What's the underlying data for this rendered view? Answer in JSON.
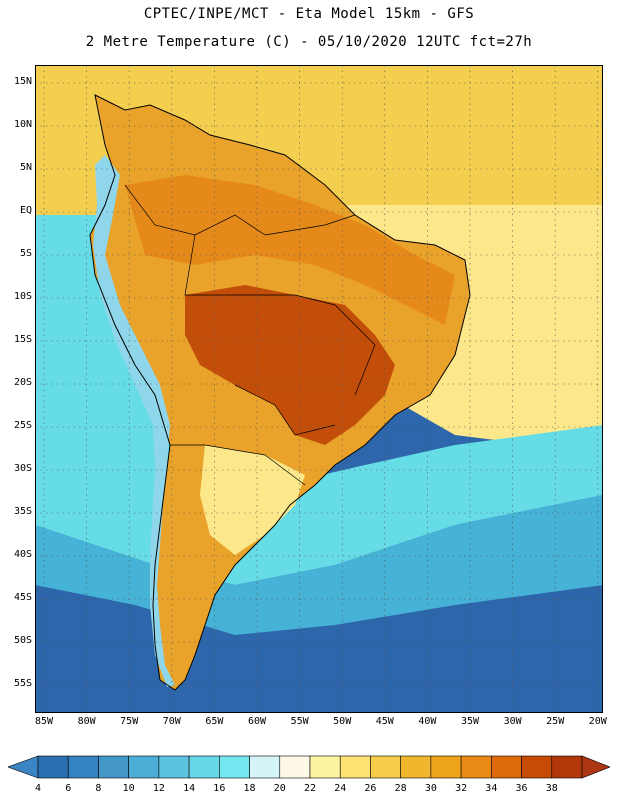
{
  "header": {
    "line1": "CPTEC/INPE/MCT -  Eta Model 15km - GFS",
    "line2": "2 Metre Temperature (C) - 05/10/2020 12UTC fct=27h"
  },
  "axes": {
    "lat_labels": [
      "15N",
      "10N",
      "5N",
      "EQ",
      "5S",
      "10S",
      "15S",
      "20S",
      "25S",
      "30S",
      "35S",
      "40S",
      "45S",
      "50S",
      "55S"
    ],
    "lon_labels": [
      "85W",
      "80W",
      "75W",
      "70W",
      "65W",
      "60W",
      "55W",
      "50W",
      "45W",
      "40W",
      "35W",
      "30W",
      "25W",
      "20W"
    ]
  },
  "colorbar": {
    "labels": [
      "4",
      "6",
      "8",
      "10",
      "12",
      "14",
      "16",
      "18",
      "20",
      "22",
      "24",
      "26",
      "28",
      "30",
      "32",
      "34",
      "36",
      "38"
    ],
    "colors": [
      "#2a6fb0",
      "#3583c0",
      "#4398c9",
      "#4eadd6",
      "#5bc3e0",
      "#66d8e8",
      "#74e8f0",
      "#d4f4f8",
      "#fdf9e6",
      "#fdf3a0",
      "#fbe272",
      "#f6cd4c",
      "#efb62e",
      "#eda41a",
      "#e88a14",
      "#df6a0a",
      "#c74a05",
      "#b2380a"
    ],
    "low_color": "#3a86c4",
    "high_color": "#ac3612"
  },
  "map": {
    "ocean_cold": "#2e66ab",
    "ocean_mid": "#45b2d6",
    "ocean_cool": "#66dde6",
    "ocean_warm": "#fce88a",
    "ocean_tropic": "#f4cf4f",
    "land_hot": "#c24e0a",
    "land_warm": "#e58a1a",
    "land_mild": "#eaa32a",
    "andes_cold": "#8fd6ea"
  }
}
